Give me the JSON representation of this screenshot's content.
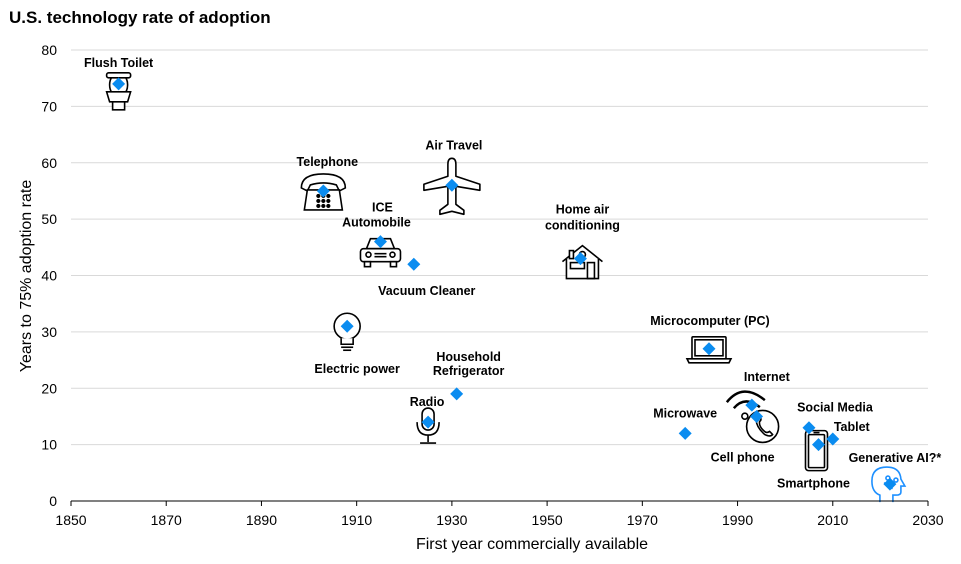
{
  "chart_data": {
    "type": "scatter",
    "title": "U.S. technology rate of adoption",
    "xlabel": "First year commercially available",
    "ylabel": "Years to 75% adoption rate",
    "xlim": [
      1850,
      2030
    ],
    "ylim": [
      0,
      80
    ],
    "xticks": [
      1850,
      1870,
      1890,
      1910,
      1930,
      1950,
      1970,
      1990,
      2010,
      2030
    ],
    "yticks": [
      0,
      10,
      20,
      30,
      40,
      50,
      60,
      70,
      80
    ],
    "grid": "horizontal",
    "marker_color": "#0a8cf0",
    "highlight_color": "#1e90ff",
    "points": [
      {
        "label": "Flush Toilet",
        "x": 1860,
        "y": 74,
        "icon": "toilet-icon"
      },
      {
        "label": "Telephone",
        "x": 1903,
        "y": 55,
        "icon": "telephone-icon"
      },
      {
        "label": "Air Travel",
        "x": 1930,
        "y": 56,
        "icon": "airplane-icon"
      },
      {
        "label": "ICE Automobile",
        "x": 1915,
        "y": 46,
        "icon": "car-icon"
      },
      {
        "label": "Vacuum Cleaner",
        "x": 1922,
        "y": 42,
        "icon": ""
      },
      {
        "label": "Home air conditioning",
        "x": 1957,
        "y": 43,
        "icon": "house-icon"
      },
      {
        "label": "Electric power",
        "x": 1908,
        "y": 31,
        "icon": "lightbulb-icon"
      },
      {
        "label": "Household Refrigerator",
        "x": 1931,
        "y": 19,
        "icon": ""
      },
      {
        "label": "Radio",
        "x": 1925,
        "y": 14,
        "icon": "microphone-icon"
      },
      {
        "label": "Microcomputer (PC)",
        "x": 1984,
        "y": 27,
        "icon": "laptop-icon"
      },
      {
        "label": "Microwave",
        "x": 1979,
        "y": 12,
        "icon": ""
      },
      {
        "label": "Internet",
        "x": 1993,
        "y": 17,
        "icon": "wifi-icon"
      },
      {
        "label": "Cell phone",
        "x": 1994,
        "y": 15,
        "icon": "phone-circle-icon"
      },
      {
        "label": "Social Media",
        "x": 2005,
        "y": 13,
        "icon": ""
      },
      {
        "label": "Smartphone",
        "x": 2007,
        "y": 10,
        "icon": "smartphone-icon"
      },
      {
        "label": "Tablet",
        "x": 2010,
        "y": 11,
        "icon": ""
      },
      {
        "label": "Generative AI?*",
        "x": 2022,
        "y": 3,
        "icon": "ai-head-icon",
        "highlight": true
      }
    ]
  }
}
